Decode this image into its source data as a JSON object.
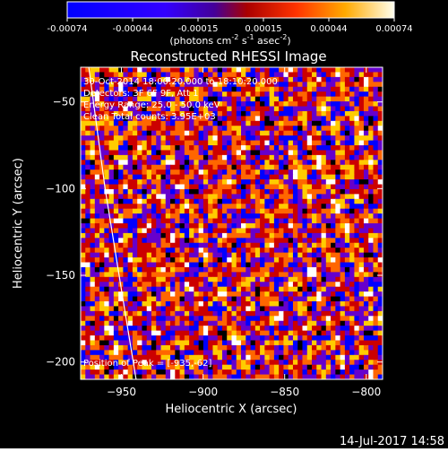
{
  "colorbar": {
    "ticks": [
      "-0.00074",
      "-0.00044",
      "-0.00015",
      "0.00015",
      "0.00044",
      "0.00074"
    ],
    "unit_main": "(photons cm",
    "unit_exp1": "-2",
    "unit_mid": " s",
    "unit_exp2": "-1",
    "unit_end": " asec",
    "unit_exp3": "-2",
    "unit_close": ")"
  },
  "annotations": {
    "time": "30-Oct-2014 18:00:20.000 to 18:10:20.000",
    "detectors": "Detectors: 3F 6F 9F, Att 1",
    "energy": "Energy Range: 25.0 - 50.0 keV",
    "clean": "Clean    Total counts: 3.95E+03",
    "peak": "Position of Peak = [-935,-62]"
  },
  "footer": {
    "timestamp": "14-Jul-2017 14:58"
  },
  "chart_data": {
    "type": "heatmap",
    "title": "Reconstructed RHESSI Image",
    "xlabel": "Heliocentric X (arcsec)",
    "ylabel": "Heliocentric Y (arcsec)",
    "xlim": [
      -975,
      -790
    ],
    "ylim": [
      -210,
      -30
    ],
    "xticks": [
      -950,
      -900,
      -850,
      -800
    ],
    "yticks": [
      -50,
      -100,
      -150,
      -200
    ],
    "colorbar_range": [
      -0.00074,
      0.00074
    ],
    "grid_cells": [
      64,
      64
    ],
    "limb_curve": [
      [
        -970,
        -30
      ],
      [
        -960,
        -100
      ],
      [
        -948,
        -170
      ],
      [
        -941,
        -210
      ]
    ],
    "peak_position": [
      -935,
      -62
    ],
    "colormap": [
      "#000000",
      "#0000ff",
      "#6600cc",
      "#cc0000",
      "#ff6600",
      "#ffcc00",
      "#ffffff"
    ]
  }
}
